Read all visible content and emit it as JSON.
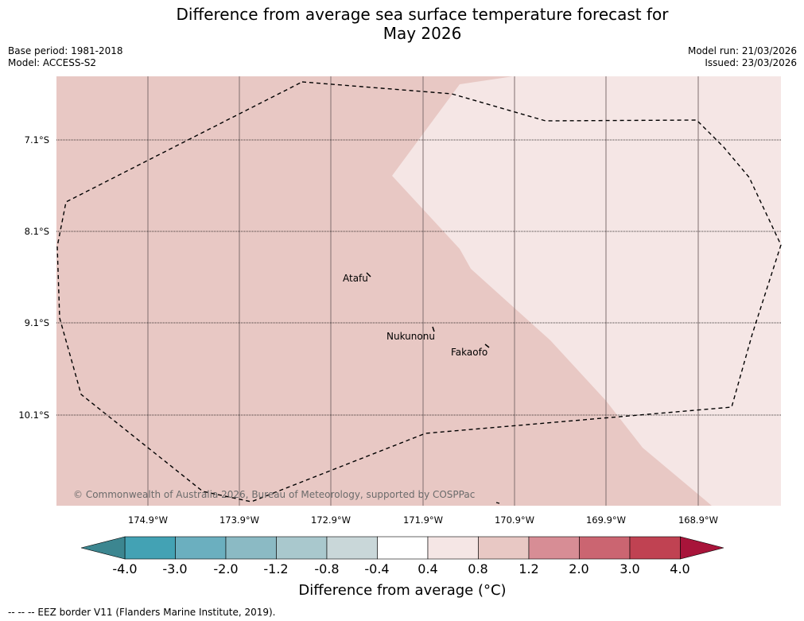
{
  "title_line1": "Difference from average sea surface temperature forecast for",
  "title_line2": "May 2026",
  "base_period": "Base period: 1981-2018",
  "model": "Model: ACCESS-S2",
  "model_run": "Model run: 21/03/2026",
  "issued": "Issued: 23/03/2026",
  "copyright": "© Commonwealth of Australia 2026, Bureau of Meteorology, supported by COSPPac",
  "places": {
    "atafu": "Atafu",
    "nukunonu": "Nukunonu",
    "fakaofo": "Fakaofo"
  },
  "lat_labels": [
    "7.1°S",
    "8.1°S",
    "9.1°S",
    "10.1°S"
  ],
  "lon_labels": [
    "174.9°W",
    "173.9°W",
    "172.9°W",
    "171.9°W",
    "170.9°W",
    "169.9°W",
    "168.9°W"
  ],
  "colorbar": {
    "labels": [
      "-4.0",
      "-3.0",
      "-2.0",
      "-1.2",
      "-0.8",
      "-0.4",
      "0.4",
      "0.8",
      "1.2",
      "2.0",
      "3.0",
      "4.0"
    ],
    "colors": [
      "#43a2b4",
      "#6bafbf",
      "#8bbac4",
      "#a9c8cd",
      "#c9d7d9",
      "#ffffff",
      "#f5e6e5",
      "#e8c8c4",
      "#d78d95",
      "#cb6571",
      "#c04252"
    ],
    "under_color": "#3c8690",
    "over_color": "#a8143a",
    "title": "Difference from average (°C)"
  },
  "map_colors": {
    "anomaly_0_8_to_1_2": "#e8c8c4",
    "anomaly_0_4_to_0_8": "#f5e6e5"
  },
  "legend_footer": "--  --  -- EEZ border V11 (Flanders Marine Institute, 2019)."
}
